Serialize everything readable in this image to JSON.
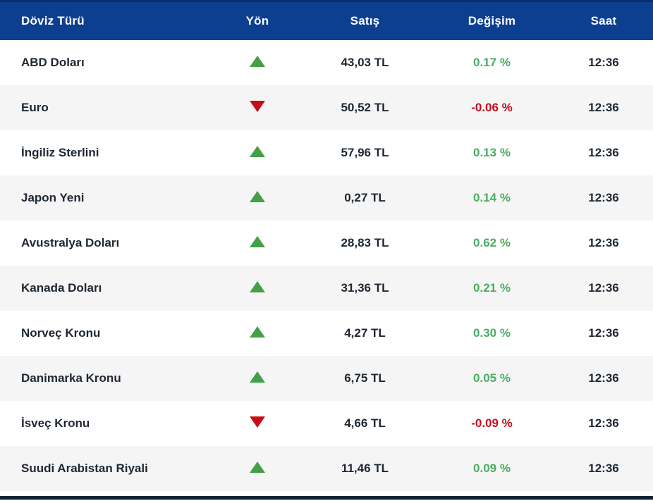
{
  "colors": {
    "header_bg": "#0c3f8f",
    "header_top_border": "#0a2e6b",
    "header_text": "#ffffff",
    "row_bg": "#ffffff",
    "row_alt_bg": "#f5f5f5",
    "body_text": "#1e2732",
    "up_arrow": "#43a047",
    "down_arrow": "#c60c18",
    "positive_change_text": "#4aad62",
    "negative_change_text": "#c30d1d",
    "footer_bar": "#0e2033"
  },
  "table": {
    "columns": [
      {
        "key": "currency",
        "label": "Döviz Türü"
      },
      {
        "key": "direction",
        "label": "Yön"
      },
      {
        "key": "price",
        "label": "Satış"
      },
      {
        "key": "change",
        "label": "Değişim"
      },
      {
        "key": "time",
        "label": "Saat"
      }
    ],
    "rows": [
      {
        "currency": "ABD Doları",
        "direction": "up",
        "price": "43,03 TL",
        "change": "0.17 %",
        "time": "12:36"
      },
      {
        "currency": "Euro",
        "direction": "down",
        "price": "50,52 TL",
        "change": "-0.06 %",
        "time": "12:36"
      },
      {
        "currency": "İngiliz Sterlini",
        "direction": "up",
        "price": "57,96 TL",
        "change": "0.13 %",
        "time": "12:36"
      },
      {
        "currency": "Japon Yeni",
        "direction": "up",
        "price": "0,27 TL",
        "change": "0.14 %",
        "time": "12:36"
      },
      {
        "currency": "Avustralya Doları",
        "direction": "up",
        "price": "28,83 TL",
        "change": "0.62 %",
        "time": "12:36"
      },
      {
        "currency": "Kanada Doları",
        "direction": "up",
        "price": "31,36 TL",
        "change": "0.21 %",
        "time": "12:36"
      },
      {
        "currency": "Norveç Kronu",
        "direction": "up",
        "price": "4,27 TL",
        "change": "0.30 %",
        "time": "12:36"
      },
      {
        "currency": "Danimarka Kronu",
        "direction": "up",
        "price": "6,75 TL",
        "change": "0.05 %",
        "time": "12:36"
      },
      {
        "currency": "İsveç Kronu",
        "direction": "down",
        "price": "4,66 TL",
        "change": "-0.09 %",
        "time": "12:36"
      },
      {
        "currency": "Suudi Arabistan Riyali",
        "direction": "up",
        "price": "11,46 TL",
        "change": "0.09 %",
        "time": "12:36"
      }
    ]
  }
}
